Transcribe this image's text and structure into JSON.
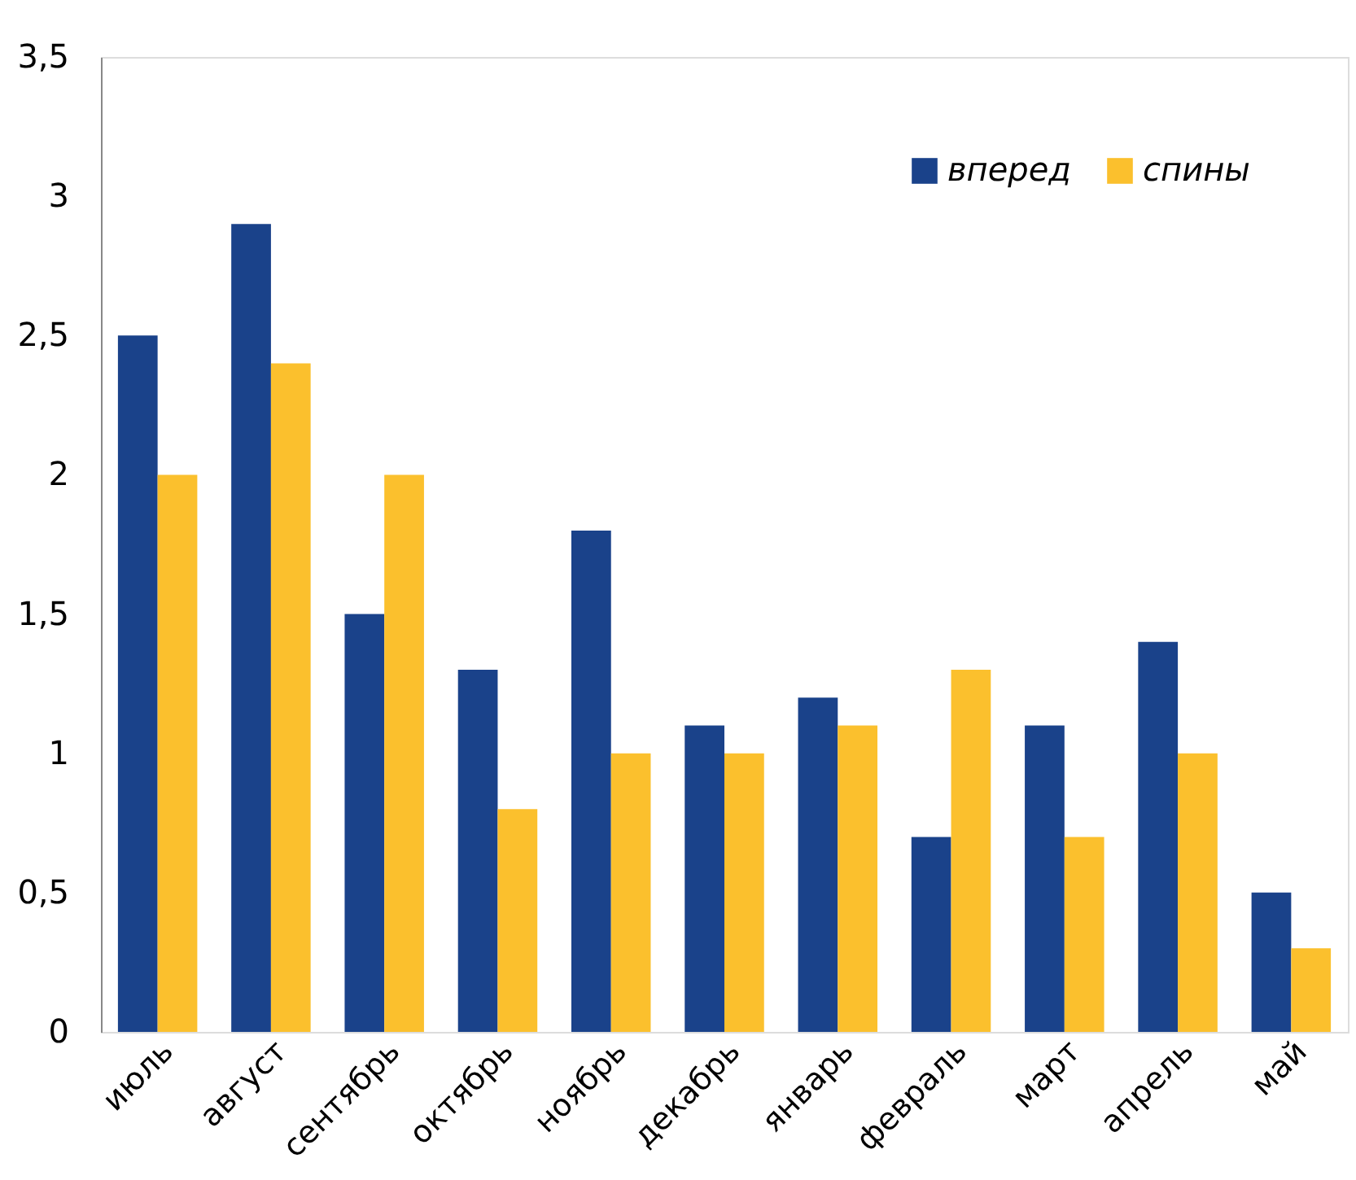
{
  "chart_data": {
    "type": "bar",
    "categories": [
      "июль",
      "август",
      "сентябрь",
      "октябрь",
      "ноябрь",
      "декабрь",
      "январь",
      "февраль",
      "март",
      "апрель",
      "май"
    ],
    "series": [
      {
        "name": "вперед",
        "color": "#1a428a",
        "values": [
          2.5,
          2.9,
          1.5,
          1.3,
          1.8,
          1.1,
          1.2,
          0.7,
          1.1,
          1.4,
          0.5
        ]
      },
      {
        "name": "спины",
        "color": "#fbc02d",
        "values": [
          2.0,
          2.4,
          2.0,
          0.8,
          1.0,
          1.0,
          1.1,
          1.3,
          0.7,
          1.0,
          0.3
        ]
      }
    ],
    "ylim": [
      0,
      3.5
    ],
    "yticks": [
      {
        "value": 0,
        "label": "0"
      },
      {
        "value": 0.5,
        "label": "0,5"
      },
      {
        "value": 1,
        "label": "1"
      },
      {
        "value": 1.5,
        "label": "1,5"
      },
      {
        "value": 2,
        "label": "2"
      },
      {
        "value": 2.5,
        "label": "2,5"
      },
      {
        "value": 3,
        "label": "3"
      },
      {
        "value": 3.5,
        "label": "3,5"
      }
    ],
    "grid": false,
    "legend": "top right"
  }
}
